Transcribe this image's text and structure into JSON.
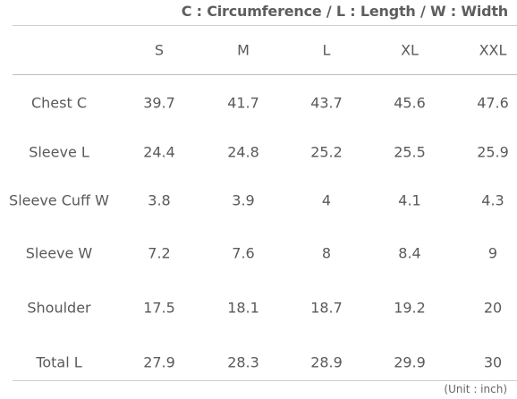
{
  "legend": "C : Circumference / L : Length / W : Width",
  "headers": [
    "S",
    "M",
    "L",
    "XL",
    "XXL"
  ],
  "rows": [
    {
      "label": "Chest C",
      "values": [
        "39.7",
        "41.7",
        "43.7",
        "45.6",
        "47.6"
      ]
    },
    {
      "label": "Sleeve L",
      "values": [
        "24.4",
        "24.8",
        "25.2",
        "25.5",
        "25.9"
      ]
    },
    {
      "label": "Sleeve Cuff W",
      "values": [
        "3.8",
        "3.9",
        "4",
        "4.1",
        "4.3"
      ]
    },
    {
      "label": "Sleeve W",
      "values": [
        "7.2",
        "7.6",
        "8",
        "8.4",
        "9"
      ]
    },
    {
      "label": "Shoulder",
      "values": [
        "17.5",
        "18.1",
        "18.7",
        "19.2",
        "20"
      ]
    },
    {
      "label": "Total L",
      "values": [
        "27.9",
        "28.3",
        "28.9",
        "29.9",
        "30"
      ]
    }
  ],
  "unit_note": "(Unit : inch)"
}
